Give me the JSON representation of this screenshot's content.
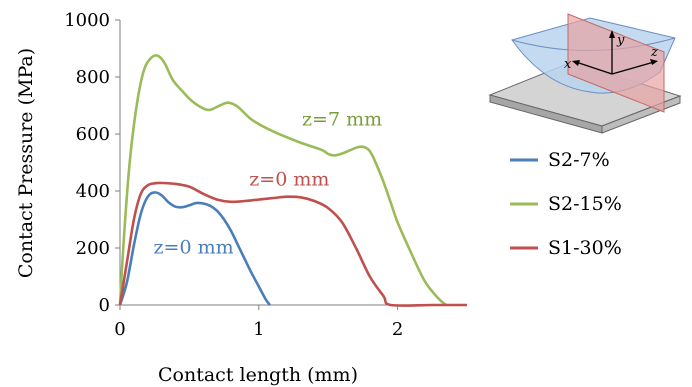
{
  "chart_data": {
    "type": "line",
    "xlabel": "Contact length (mm)",
    "ylabel": "Contact Pressure (MPa)",
    "xlim": [
      0,
      2.5
    ],
    "ylim": [
      0,
      1000
    ],
    "x_ticks": [
      0,
      1,
      2
    ],
    "y_ticks": [
      0,
      200,
      400,
      600,
      800,
      1000
    ],
    "grid": false,
    "legend_position": "right",
    "series": [
      {
        "name": "S2-7%",
        "color": "#4a7eba",
        "points": [
          [
            0,
            0
          ],
          [
            0.05,
            80
          ],
          [
            0.1,
            210
          ],
          [
            0.15,
            320
          ],
          [
            0.2,
            380
          ],
          [
            0.25,
            395
          ],
          [
            0.3,
            385
          ],
          [
            0.35,
            360
          ],
          [
            0.4,
            345
          ],
          [
            0.45,
            343
          ],
          [
            0.5,
            350
          ],
          [
            0.55,
            358
          ],
          [
            0.6,
            356
          ],
          [
            0.65,
            348
          ],
          [
            0.7,
            330
          ],
          [
            0.75,
            300
          ],
          [
            0.8,
            260
          ],
          [
            0.85,
            210
          ],
          [
            0.9,
            160
          ],
          [
            0.95,
            110
          ],
          [
            1.0,
            65
          ],
          [
            1.05,
            20
          ],
          [
            1.08,
            0
          ]
        ]
      },
      {
        "name": "S2-15%",
        "color": "#9bbb59",
        "points": [
          [
            0,
            0
          ],
          [
            0.03,
            250
          ],
          [
            0.07,
            500
          ],
          [
            0.12,
            700
          ],
          [
            0.17,
            820
          ],
          [
            0.22,
            865
          ],
          [
            0.27,
            875
          ],
          [
            0.32,
            850
          ],
          [
            0.38,
            790
          ],
          [
            0.45,
            750
          ],
          [
            0.52,
            715
          ],
          [
            0.6,
            690
          ],
          [
            0.65,
            685
          ],
          [
            0.72,
            700
          ],
          [
            0.78,
            710
          ],
          [
            0.85,
            695
          ],
          [
            0.95,
            650
          ],
          [
            1.1,
            610
          ],
          [
            1.3,
            570
          ],
          [
            1.45,
            545
          ],
          [
            1.5,
            530
          ],
          [
            1.55,
            525
          ],
          [
            1.62,
            535
          ],
          [
            1.7,
            552
          ],
          [
            1.75,
            555
          ],
          [
            1.8,
            540
          ],
          [
            1.85,
            490
          ],
          [
            1.9,
            430
          ],
          [
            1.95,
            360
          ],
          [
            2.0,
            290
          ],
          [
            2.1,
            180
          ],
          [
            2.2,
            80
          ],
          [
            2.3,
            20
          ],
          [
            2.35,
            0
          ]
        ]
      },
      {
        "name": "S1-30%",
        "color": "#c0504d",
        "points": [
          [
            0,
            0
          ],
          [
            0.05,
            150
          ],
          [
            0.1,
            300
          ],
          [
            0.15,
            390
          ],
          [
            0.2,
            420
          ],
          [
            0.25,
            427
          ],
          [
            0.3,
            428
          ],
          [
            0.4,
            425
          ],
          [
            0.5,
            415
          ],
          [
            0.6,
            390
          ],
          [
            0.7,
            370
          ],
          [
            0.8,
            362
          ],
          [
            0.9,
            365
          ],
          [
            1.0,
            370
          ],
          [
            1.1,
            375
          ],
          [
            1.2,
            380
          ],
          [
            1.3,
            378
          ],
          [
            1.4,
            365
          ],
          [
            1.5,
            340
          ],
          [
            1.6,
            290
          ],
          [
            1.7,
            200
          ],
          [
            1.8,
            100
          ],
          [
            1.9,
            30
          ],
          [
            1.95,
            0
          ],
          [
            2.25,
            0
          ],
          [
            2.5,
            0
          ]
        ]
      }
    ],
    "annotations": [
      {
        "text": "z=7 mm",
        "x": 1.6,
        "y": 630,
        "color": "#7a9c3e"
      },
      {
        "text": "z=0 mm",
        "x": 1.22,
        "y": 420,
        "color": "#c0504d"
      },
      {
        "text": "z=0 mm",
        "x": 0.53,
        "y": 180,
        "color": "#4a7eba"
      }
    ]
  },
  "inset": {
    "labels": {
      "y": "y",
      "x": "x",
      "z": "z"
    }
  }
}
